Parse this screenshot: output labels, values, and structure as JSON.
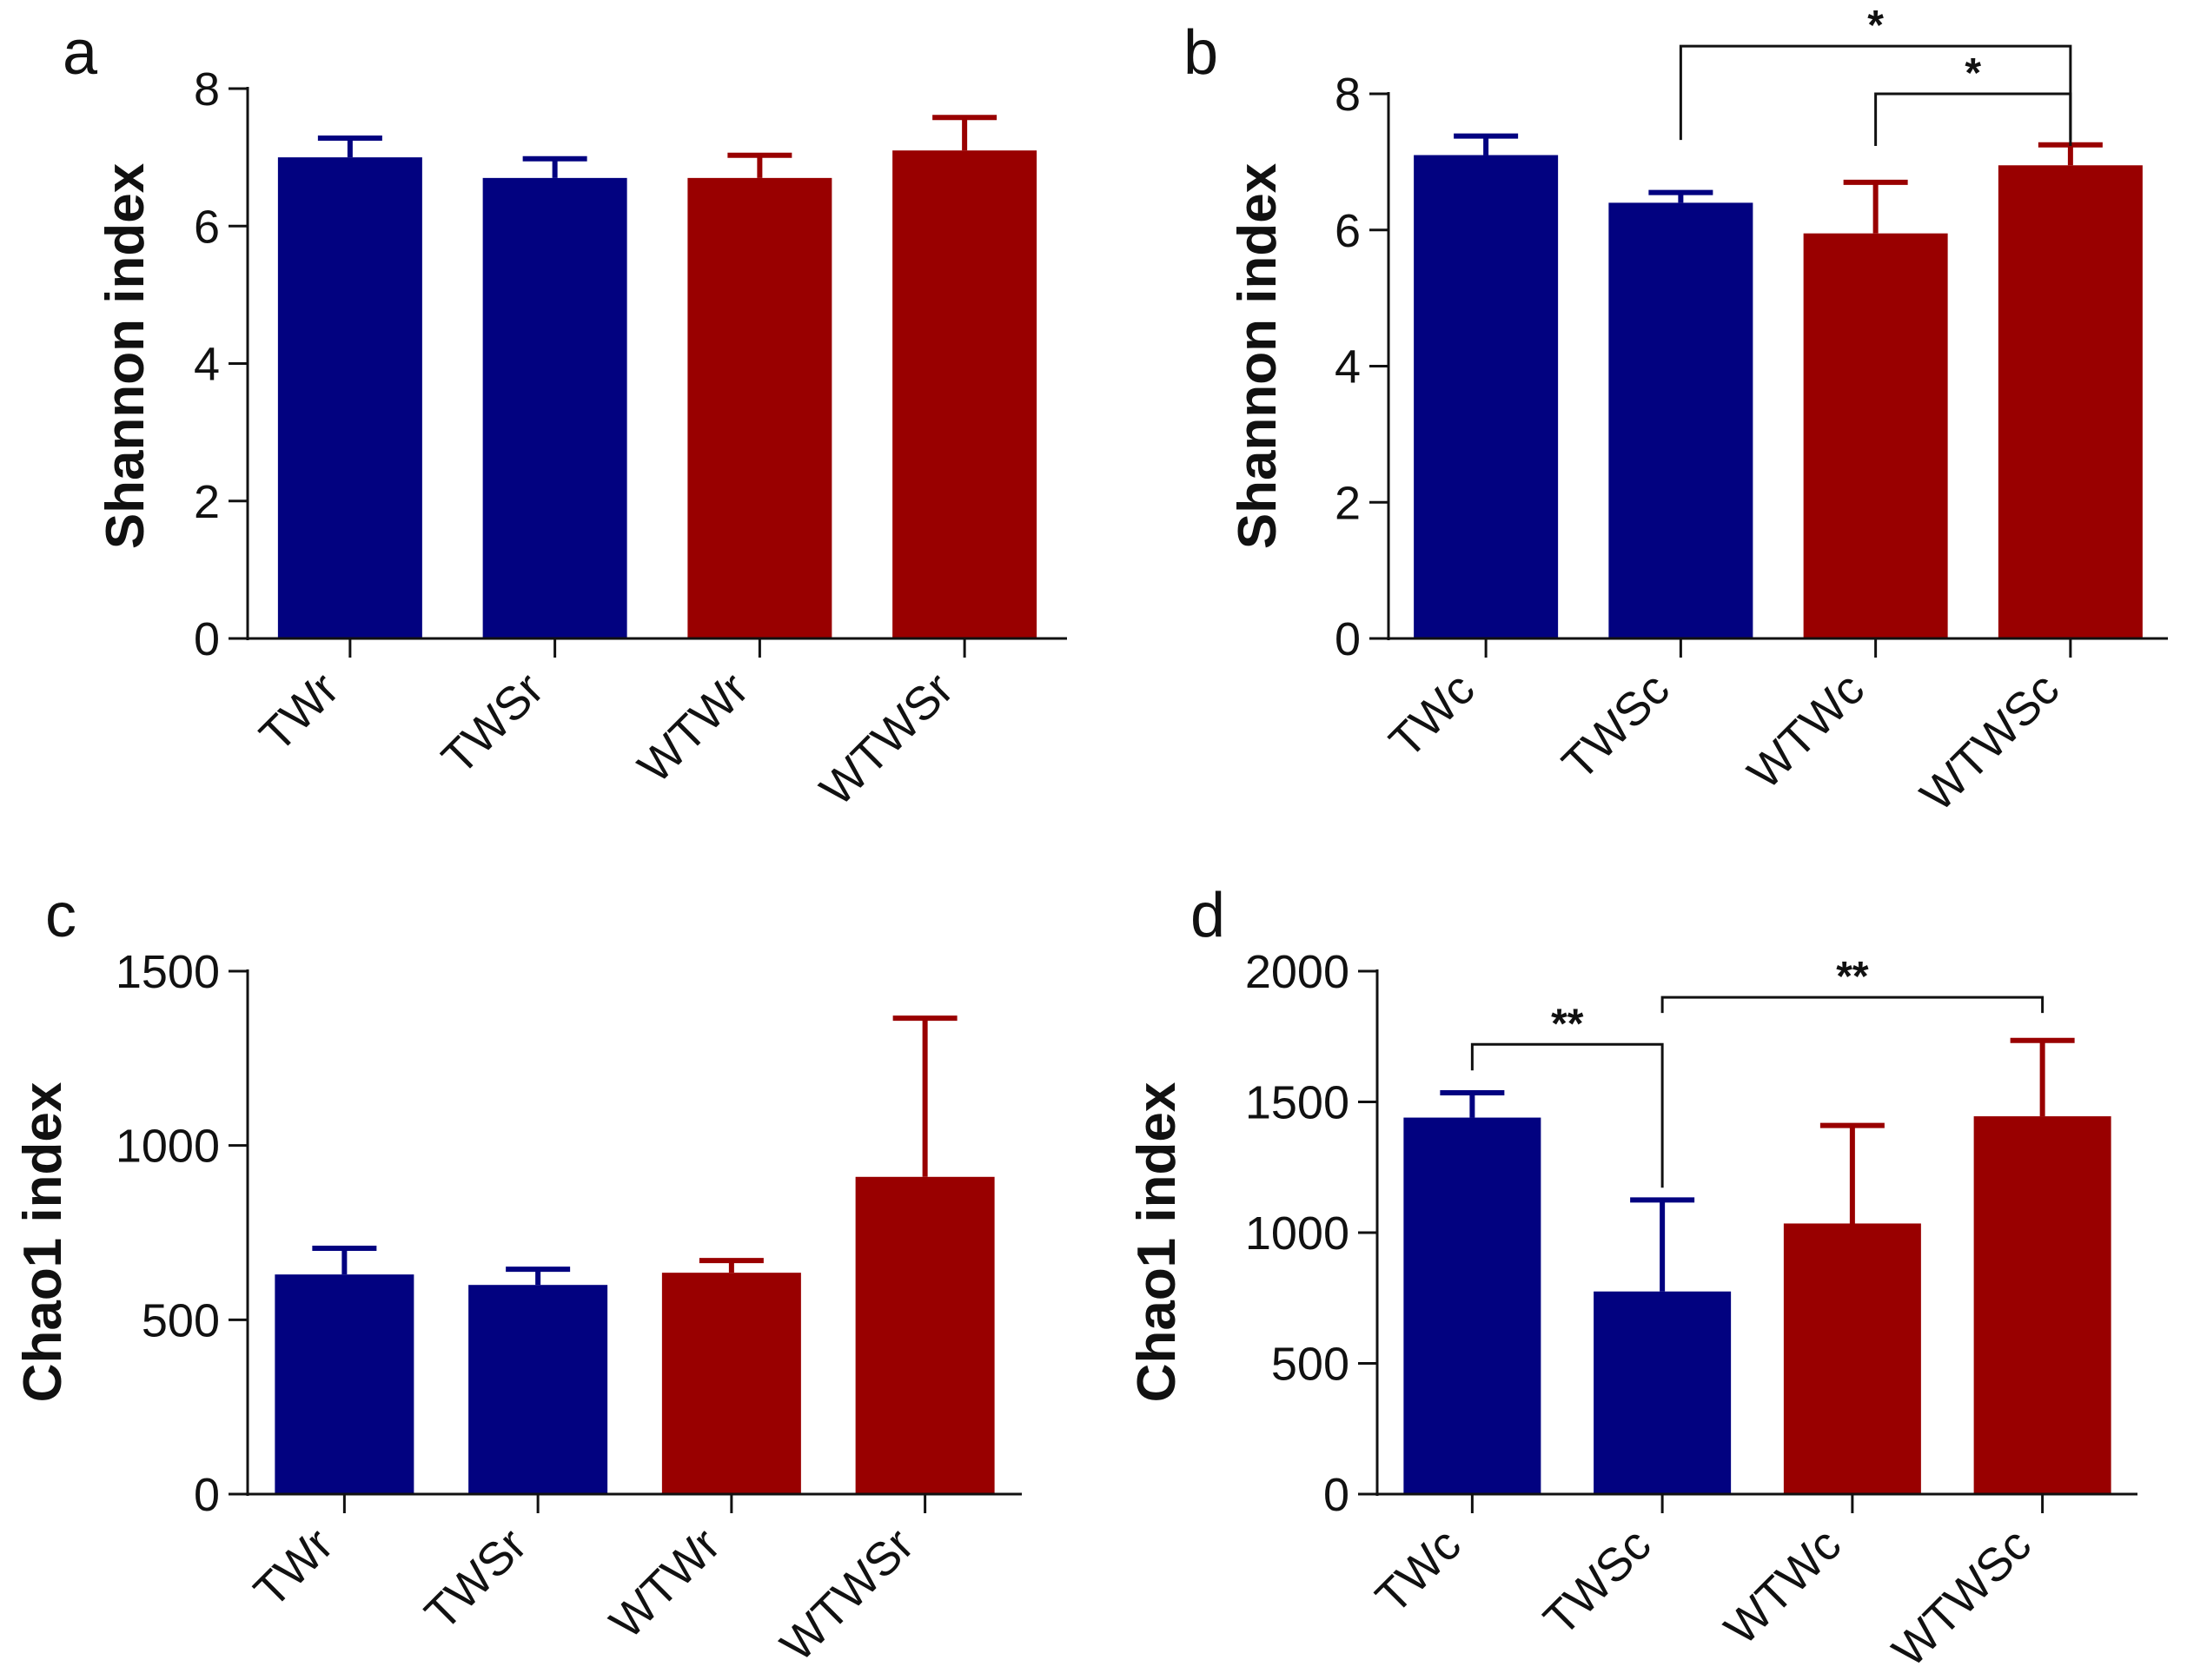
{
  "colors": {
    "blue": "#020280",
    "red": "#990000",
    "axis": "#111111"
  },
  "chart_data": [
    {
      "panel": "a",
      "type": "bar",
      "ylabel": "Shannon index",
      "ylim": [
        0,
        8
      ],
      "yticks": [
        "0",
        "2",
        "4",
        "6",
        "8"
      ],
      "categories": [
        "TWr",
        "TWSr",
        "WTWr",
        "WTWSr"
      ],
      "values": [
        7.0,
        6.7,
        6.7,
        7.1
      ],
      "errors": [
        0.28,
        0.28,
        0.33,
        0.48
      ],
      "bar_colors": [
        "blue",
        "blue",
        "red",
        "red"
      ],
      "significance": []
    },
    {
      "panel": "b",
      "type": "bar",
      "ylabel": "Shannon index",
      "ylim": [
        0,
        8
      ],
      "yticks": [
        "0",
        "2",
        "4",
        "6",
        "8"
      ],
      "categories": [
        "TWc",
        "TWSc",
        "WTWc",
        "WTWSc"
      ],
      "values": [
        7.1,
        6.4,
        5.95,
        6.95
      ],
      "errors": [
        0.28,
        0.15,
        0.75,
        0.3
      ],
      "bar_colors": [
        "blue",
        "blue",
        "red",
        "red"
      ],
      "significance": [
        {
          "from": 1,
          "to": 3,
          "label": "*",
          "level": 8.7
        },
        {
          "from": 2,
          "to": 3,
          "label": "*",
          "level": 8.0
        }
      ]
    },
    {
      "panel": "c",
      "type": "bar",
      "ylabel": "Chao1 index",
      "ylim": [
        0,
        1500
      ],
      "yticks": [
        "0",
        "500",
        "1000",
        "1500"
      ],
      "categories": [
        "TWr",
        "TWSr",
        "WTWr",
        "WTWSr"
      ],
      "values": [
        630,
        600,
        635,
        910
      ],
      "errors": [
        75,
        45,
        35,
        455
      ],
      "bar_colors": [
        "blue",
        "blue",
        "red",
        "red"
      ],
      "significance": []
    },
    {
      "panel": "d",
      "type": "bar",
      "ylabel": "Chao1 index",
      "ylim": [
        0,
        2000
      ],
      "yticks": [
        "0",
        "500",
        "1000",
        "1500",
        "2000"
      ],
      "categories": [
        "TWc",
        "TWSc",
        "WTWc",
        "WTWSc"
      ],
      "values": [
        1440,
        775,
        1035,
        1445
      ],
      "errors": [
        95,
        350,
        375,
        290
      ],
      "bar_colors": [
        "blue",
        "blue",
        "red",
        "red"
      ],
      "significance": [
        {
          "from": 0,
          "to": 1,
          "label": "**",
          "level": 1720
        },
        {
          "from": 1,
          "to": 3,
          "label": "**",
          "level": 1900
        }
      ]
    }
  ]
}
